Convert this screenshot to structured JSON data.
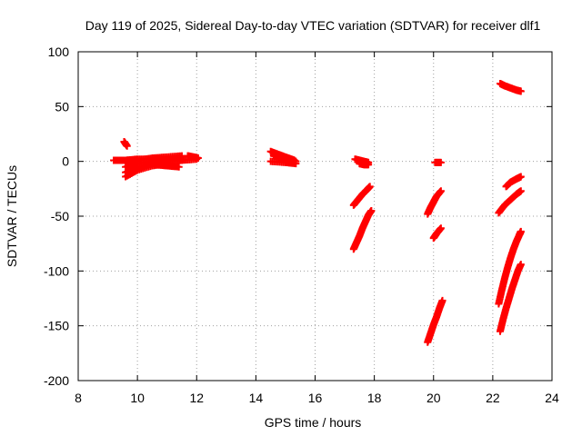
{
  "chart_data": {
    "type": "scatter",
    "title": "Day 119 of 2025, Sidereal Day-to-day VTEC variation (SDTVAR) for receiver dlf1",
    "xlabel": "GPS time / hours",
    "ylabel": "SDTVAR / TECUs",
    "xlim": [
      8,
      24
    ],
    "ylim": [
      -200,
      100
    ],
    "xticks": [
      8,
      10,
      12,
      14,
      16,
      18,
      20,
      22,
      24
    ],
    "yticks": [
      -200,
      -150,
      -100,
      -50,
      0,
      50,
      100
    ],
    "x_tick_labels": [
      "8",
      "10",
      "12",
      "14",
      "16",
      "18",
      "20",
      "22",
      "24"
    ],
    "y_tick_labels": [
      "-200",
      "-150",
      "-100",
      "-50",
      "0",
      "50",
      "100"
    ],
    "grid": true,
    "legend": "none",
    "marker": "plus",
    "color": "#ff0000",
    "series": [
      {
        "x": [
          9.55,
          9.65
        ],
        "y": [
          18,
          14
        ]
      },
      {
        "x": [
          9.2,
          9.6,
          10.0,
          10.5,
          11.0,
          11.5
        ],
        "y": [
          1,
          1,
          2,
          2,
          2,
          1
        ]
      },
      {
        "x": [
          9.6,
          10.0,
          10.5,
          11.0,
          11.5
        ],
        "y": [
          -1,
          1,
          3,
          4,
          5
        ]
      },
      {
        "x": [
          9.6,
          10.0,
          10.5,
          11.0,
          11.4
        ],
        "y": [
          -5,
          -2,
          0,
          2,
          3
        ]
      },
      {
        "x": [
          9.6,
          10.0,
          10.5,
          11.0
        ],
        "y": [
          -10,
          -5,
          -2,
          0
        ]
      },
      {
        "x": [
          9.6,
          10.0,
          10.5,
          11.0
        ],
        "y": [
          -14,
          -8,
          -4,
          -2
        ]
      },
      {
        "x": [
          10.6,
          11.0,
          11.4
        ],
        "y": [
          -3,
          -4,
          -5
        ]
      },
      {
        "x": [
          11.0,
          11.5,
          12.0
        ],
        "y": [
          0,
          1,
          2
        ]
      },
      {
        "x": [
          11.7,
          11.9,
          12.05
        ],
        "y": [
          5,
          4,
          3
        ]
      },
      {
        "x": [
          14.5,
          14.8,
          15.1,
          15.3
        ],
        "y": [
          9,
          6,
          3,
          1
        ]
      },
      {
        "x": [
          14.6,
          14.9,
          15.2,
          15.35
        ],
        "y": [
          5,
          3,
          1,
          0
        ]
      },
      {
        "x": [
          14.5,
          15.0,
          15.35
        ],
        "y": [
          0,
          -1,
          -2
        ]
      },
      {
        "x": [
          17.35,
          17.5,
          17.65,
          17.8
        ],
        "y": [
          2,
          1,
          0,
          -1
        ]
      },
      {
        "x": [
          17.5,
          17.65,
          17.8
        ],
        "y": [
          -2,
          -3,
          -3
        ]
      },
      {
        "x": [
          17.3,
          17.45,
          17.6,
          17.75,
          17.85
        ],
        "y": [
          -40,
          -35,
          -30,
          -26,
          -23
        ]
      },
      {
        "x": [
          17.3,
          17.4,
          17.5,
          17.6,
          17.7,
          17.8,
          17.9
        ],
        "y": [
          -80,
          -74,
          -68,
          -61,
          -55,
          -49,
          -45
        ]
      },
      {
        "x": [
          20.05,
          20.25
        ],
        "y": [
          -1,
          -1
        ]
      },
      {
        "x": [
          19.8,
          19.9,
          20.0,
          20.1,
          20.25
        ],
        "y": [
          -48,
          -42,
          -37,
          -32,
          -27
        ]
      },
      {
        "x": [
          20.0,
          20.1,
          20.25
        ],
        "y": [
          -70,
          -66,
          -61
        ]
      },
      {
        "x": [
          19.8,
          19.9,
          20.0,
          20.1,
          20.2,
          20.3
        ],
        "y": [
          -165,
          -157,
          -149,
          -142,
          -134,
          -127
        ]
      },
      {
        "x": [
          22.25,
          22.4,
          22.6,
          22.8,
          22.95
        ],
        "y": [
          71,
          69,
          67,
          65,
          64
        ]
      },
      {
        "x": [
          22.45,
          22.6,
          22.8,
          22.95
        ],
        "y": [
          -23,
          -19,
          -16,
          -14
        ]
      },
      {
        "x": [
          22.2,
          22.4,
          22.6,
          22.8,
          22.95
        ],
        "y": [
          -47,
          -40,
          -35,
          -30,
          -27
        ]
      },
      {
        "x": [
          22.2,
          22.3,
          22.4,
          22.5,
          22.6,
          22.7,
          22.8,
          22.9,
          22.95
        ],
        "y": [
          -130,
          -118,
          -107,
          -97,
          -88,
          -80,
          -73,
          -67,
          -64
        ]
      },
      {
        "x": [
          22.25,
          22.35,
          22.45,
          22.55,
          22.65,
          22.75,
          22.85,
          22.95
        ],
        "y": [
          -155,
          -144,
          -134,
          -125,
          -116,
          -108,
          -100,
          -94
        ]
      }
    ]
  }
}
